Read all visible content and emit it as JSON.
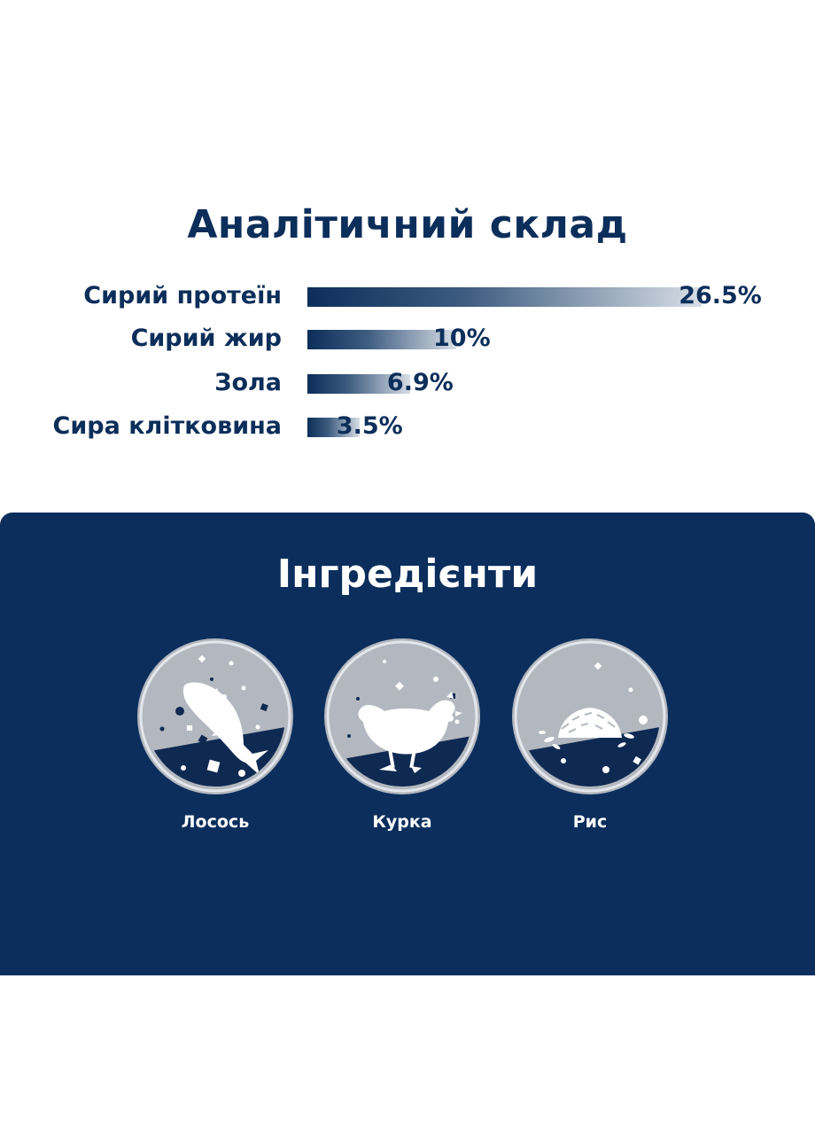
{
  "analysis": {
    "title": "Аналітичний склад",
    "nutrients": [
      {
        "label": "Сирий протеїн",
        "value": 26.5,
        "display": "26.5%"
      },
      {
        "label": "Сирий жир",
        "value": 10,
        "display": "10%"
      },
      {
        "label": "Зола",
        "value": 6.9,
        "display": "6.9%"
      },
      {
        "label": "Сира клітковина",
        "value": 3.5,
        "display": "3.5%"
      }
    ]
  },
  "ingredients": {
    "title": "Інгредієнти",
    "items": [
      {
        "label": "Лосось",
        "icon": "salmon-icon"
      },
      {
        "label": "Курка",
        "icon": "chicken-icon"
      },
      {
        "label": "Рис",
        "icon": "rice-icon"
      }
    ]
  },
  "colors": {
    "navy": "#0b2e5c",
    "text_navy": "#0c2e5a",
    "circle_grey": "#b3b8c0",
    "white": "#ffffff"
  }
}
